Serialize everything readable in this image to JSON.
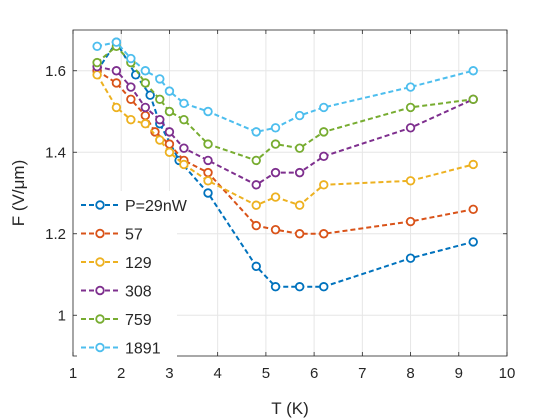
{
  "chart_data": {
    "type": "line",
    "title": "",
    "xlabel": "T (K)",
    "ylabel": "F (V/μm)",
    "xlim": [
      1,
      10
    ],
    "ylim": [
      0.9,
      1.7
    ],
    "xticks": [
      1,
      2,
      3,
      4,
      5,
      6,
      7,
      8,
      9,
      10
    ],
    "yticks": [
      1,
      1.2,
      1.4,
      1.6
    ],
    "ytick_labels": [
      "1",
      "1.2",
      "1.4",
      "1.6"
    ],
    "grid": true,
    "legend_position": "bottom-left",
    "line_style": "dashed",
    "marker": "open-circle",
    "series": [
      {
        "name": "P=29nW",
        "color": "#0072BD",
        "x": [
          1.5,
          1.9,
          2.3,
          2.6,
          2.8,
          3.2,
          3.8,
          4.8,
          5.2,
          5.7,
          6.2,
          8.0,
          9.3
        ],
        "y": [
          1.6,
          1.67,
          1.59,
          1.54,
          1.47,
          1.38,
          1.3,
          1.12,
          1.07,
          1.07,
          1.07,
          1.14,
          1.18
        ]
      },
      {
        "name": "57",
        "color": "#D95319",
        "x": [
          1.5,
          1.9,
          2.2,
          2.5,
          2.7,
          3.0,
          3.3,
          3.8,
          4.8,
          5.2,
          5.7,
          6.2,
          8.0,
          9.3
        ],
        "y": [
          1.6,
          1.57,
          1.53,
          1.49,
          1.45,
          1.42,
          1.38,
          1.35,
          1.22,
          1.21,
          1.2,
          1.2,
          1.23,
          1.26
        ]
      },
      {
        "name": "129",
        "color": "#EDB120",
        "x": [
          1.5,
          1.9,
          2.2,
          2.5,
          2.8,
          3.0,
          3.3,
          3.8,
          4.8,
          5.2,
          5.7,
          6.2,
          8.0,
          9.3
        ],
        "y": [
          1.59,
          1.51,
          1.48,
          1.47,
          1.43,
          1.4,
          1.37,
          1.33,
          1.27,
          1.29,
          1.27,
          1.32,
          1.33,
          1.37
        ]
      },
      {
        "name": "308",
        "color": "#7E2F8E",
        "x": [
          1.5,
          1.9,
          2.2,
          2.5,
          2.8,
          3.0,
          3.3,
          3.8,
          4.8,
          5.2,
          5.7,
          6.2,
          8.0,
          9.3
        ],
        "y": [
          1.61,
          1.6,
          1.56,
          1.51,
          1.48,
          1.45,
          1.41,
          1.38,
          1.32,
          1.35,
          1.35,
          1.39,
          1.46,
          1.53
        ]
      },
      {
        "name": "759",
        "color": "#77AC30",
        "x": [
          1.5,
          1.9,
          2.2,
          2.5,
          2.8,
          3.0,
          3.3,
          3.8,
          4.8,
          5.2,
          5.7,
          6.2,
          8.0,
          9.3
        ],
        "y": [
          1.62,
          1.66,
          1.62,
          1.57,
          1.53,
          1.5,
          1.48,
          1.42,
          1.38,
          1.42,
          1.41,
          1.45,
          1.51,
          1.53
        ]
      },
      {
        "name": "1891",
        "color": "#4DBEEE",
        "x": [
          1.5,
          1.9,
          2.2,
          2.5,
          2.8,
          3.0,
          3.3,
          3.8,
          4.8,
          5.2,
          5.7,
          6.2,
          8.0,
          9.3
        ],
        "y": [
          1.66,
          1.67,
          1.63,
          1.6,
          1.58,
          1.55,
          1.52,
          1.5,
          1.45,
          1.46,
          1.49,
          1.51,
          1.56,
          1.6
        ]
      }
    ]
  }
}
